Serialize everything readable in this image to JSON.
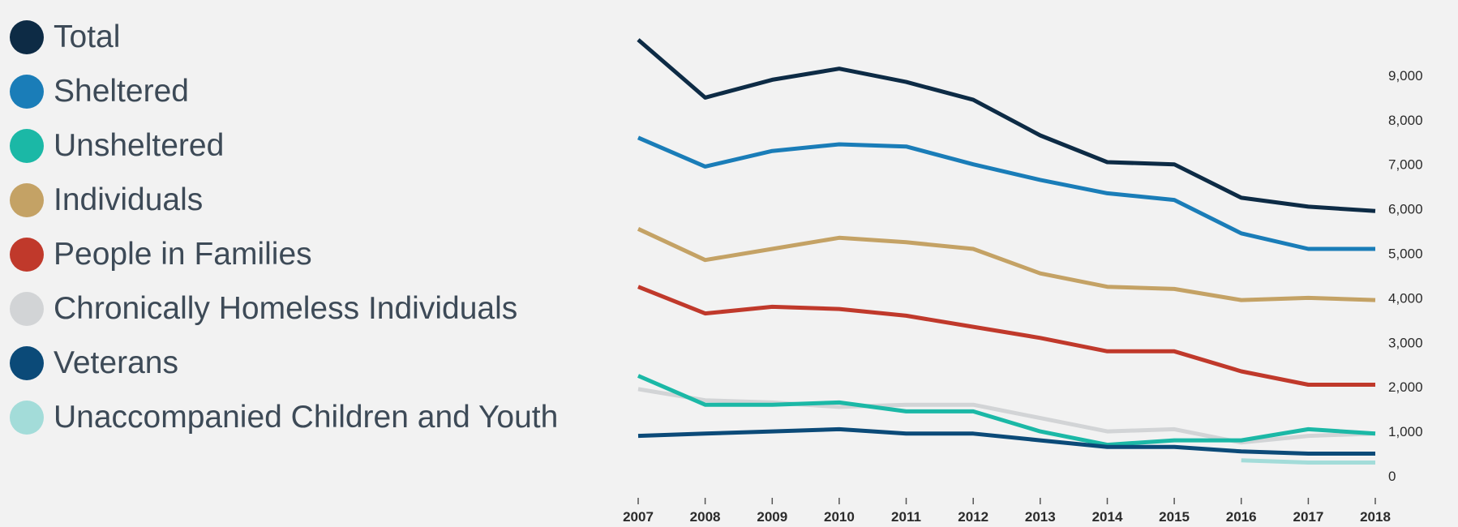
{
  "chart_data": {
    "type": "line",
    "title": "",
    "xlabel": "",
    "ylabel": "",
    "x": [
      "2007",
      "2008",
      "2009",
      "2010",
      "2011",
      "2012",
      "2013",
      "2014",
      "2015",
      "2016",
      "2017",
      "2018"
    ],
    "ylim": [
      0,
      10000
    ],
    "yticks": [
      {
        "value": 0,
        "label": "0"
      },
      {
        "value": 1000,
        "label": "1,000"
      },
      {
        "value": 2000,
        "label": "2,000"
      },
      {
        "value": 3000,
        "label": "3,000"
      },
      {
        "value": 4000,
        "label": "4,000"
      },
      {
        "value": 5000,
        "label": "5,000"
      },
      {
        "value": 6000,
        "label": "6,000"
      },
      {
        "value": 7000,
        "label": "7,000"
      },
      {
        "value": 8000,
        "label": "8,000"
      },
      {
        "value": 9000,
        "label": "9,000"
      }
    ],
    "y_axis_position": "right",
    "grid": false,
    "legend_position": "left",
    "series": [
      {
        "name": "Total",
        "color": "#0d2b45",
        "values": [
          9800,
          8500,
          8900,
          9150,
          8850,
          8450,
          7650,
          7050,
          7000,
          6250,
          6050,
          5950
        ]
      },
      {
        "name": "Sheltered",
        "color": "#1a7db8",
        "values": [
          7600,
          6950,
          7300,
          7450,
          7400,
          7000,
          6650,
          6350,
          6200,
          5450,
          5100,
          5100
        ]
      },
      {
        "name": "Unsheltered",
        "color": "#1bb8a6",
        "values": [
          2250,
          1600,
          1600,
          1650,
          1450,
          1450,
          1000,
          700,
          800,
          800,
          1050,
          950
        ]
      },
      {
        "name": "Individuals",
        "color": "#c4a265",
        "values": [
          5550,
          4850,
          5100,
          5350,
          5250,
          5100,
          4550,
          4250,
          4200,
          3950,
          4000,
          3950
        ]
      },
      {
        "name": "People in Families",
        "color": "#c0392b",
        "values": [
          4250,
          3650,
          3800,
          3750,
          3600,
          3350,
          3100,
          2800,
          2800,
          2350,
          2050,
          2050
        ]
      },
      {
        "name": "Chronically Homeless Individuals",
        "color": "#d2d4d6",
        "values": [
          1950,
          1700,
          1650,
          1550,
          1600,
          1600,
          1300,
          1000,
          1050,
          750,
          900,
          950
        ]
      },
      {
        "name": "Veterans",
        "color": "#0b4a78",
        "values": [
          900,
          950,
          1000,
          1050,
          950,
          950,
          800,
          650,
          650,
          550,
          500,
          500
        ]
      },
      {
        "name": "Unaccompanied Children and Youth",
        "color": "#a3dcd9",
        "values": [
          null,
          null,
          null,
          null,
          null,
          null,
          null,
          null,
          null,
          350,
          300,
          300
        ]
      }
    ]
  }
}
